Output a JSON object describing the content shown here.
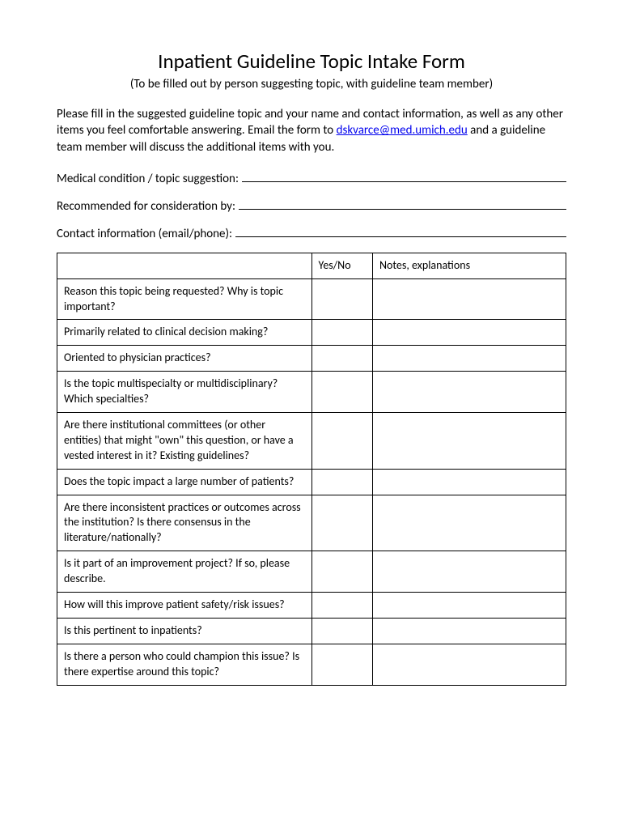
{
  "title": "Inpatient Guideline Topic Intake Form",
  "subtitle": "(To be filled out by person suggesting topic, with guideline team member)",
  "intro_part1": "Please fill in the suggested guideline topic and your name and contact information, as well as any other items you feel comfortable answering.  Email the form to ",
  "intro_email": "dskvarce@med.umich.edu",
  "intro_part2": " and a guideline team member will discuss the additional items with you.",
  "fields": {
    "medical": "Medical condition / topic suggestion:",
    "recommended": "Recommended for consideration by:",
    "contact": "Contact information (email/phone):"
  },
  "table": {
    "headers": {
      "question": "",
      "yesno": "Yes/No",
      "notes": "Notes, explanations"
    },
    "rows": [
      "Reason this topic being requested?  Why is topic important?",
      "Primarily related to clinical decision making?",
      "Oriented to physician practices?",
      "Is the topic multispecialty or multidisciplinary? Which specialties?",
      "Are there institutional committees (or other entities) that might \"own\" this question, or have a vested interest in it? Existing guidelines?",
      "Does the topic impact a large number of patients?",
      "Are there inconsistent practices or outcomes across the institution?  Is there consensus in the literature/nationally?",
      "Is it part of an improvement project? If so, please describe.",
      "How will this improve patient safety/risk issues?",
      "Is this pertinent to inpatients?",
      "Is there a person who could champion this issue? Is there expertise around this topic?"
    ]
  }
}
